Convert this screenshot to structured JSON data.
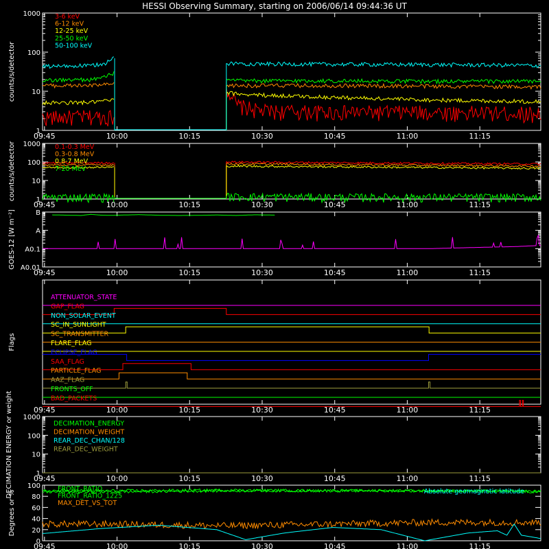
{
  "title": "HESSI Observing Summary, starting on 2006/06/14 09:44:36 UT",
  "x_ticks": [
    "09:45",
    "10:00",
    "10:15",
    "10:30",
    "10:45",
    "11:00",
    "11:15"
  ],
  "colors": {
    "red": "#ff0000",
    "orange": "#ff8c00",
    "yellow": "#ffff00",
    "green": "#00ff00",
    "cyan": "#00ffff",
    "magenta": "#ff00ff",
    "blue": "#0000ff",
    "olive": "#9c9c3c",
    "pink": "#ff6060",
    "white": "#ffffff"
  },
  "chart_data": [
    {
      "type": "line",
      "id": "rates-lo",
      "ylabel": "counts/s/detector",
      "y_scale": "log",
      "ylim": [
        1,
        1000
      ],
      "y_ticks": [
        "1",
        "10",
        "100",
        "1000"
      ],
      "x_unit": "minutes after 09:44:36 UT",
      "xlim": [
        0,
        103
      ],
      "gaps": [
        [
          14.9,
          38.0
        ]
      ],
      "legend_position": "top-left",
      "series": [
        {
          "name": "3-6 keV",
          "color": "red",
          "x": [
            0,
            14.8,
            38.1,
            40,
            45,
            60,
            80,
            100,
            103
          ],
          "y": [
            2.2,
            2.3,
            12,
            4.5,
            3.2,
            3.0,
            3.0,
            2.8,
            2.8
          ]
        },
        {
          "name": "6-12 keV",
          "color": "orange",
          "x": [
            0,
            10,
            14.8,
            38.1,
            45,
            60,
            80,
            100,
            103
          ],
          "y": [
            14,
            14,
            15,
            14,
            14,
            14,
            13.5,
            13,
            13
          ]
        },
        {
          "name": "12-25 keV",
          "color": "yellow",
          "x": [
            0,
            10,
            14.8,
            38.1,
            45,
            60,
            80,
            100,
            103
          ],
          "y": [
            5,
            5.2,
            6,
            9,
            8,
            7,
            6,
            5.5,
            5.5
          ]
        },
        {
          "name": "25-50 keV",
          "color": "green",
          "x": [
            0,
            10,
            13,
            14.8,
            38.1,
            45,
            60,
            80,
            100,
            103
          ],
          "y": [
            19,
            20,
            23,
            30,
            19,
            18.5,
            18.5,
            18,
            18,
            18
          ]
        },
        {
          "name": "50-100 keV",
          "color": "cyan",
          "x": [
            0,
            10,
            13,
            14.8,
            38.1,
            45,
            60,
            80,
            100,
            103
          ],
          "y": [
            43,
            45,
            52,
            70,
            52,
            50,
            49,
            48,
            46,
            45
          ]
        }
      ]
    },
    {
      "type": "line",
      "id": "rates-hi",
      "ylabel": "counts/s/detector",
      "y_scale": "log",
      "ylim": [
        1,
        1000
      ],
      "y_ticks": [
        "1",
        "10",
        "100",
        "1000"
      ],
      "x_unit": "minutes after 09:44:36 UT",
      "xlim": [
        0,
        103
      ],
      "gaps": [
        [
          14.9,
          38.0
        ]
      ],
      "legend_position": "top-left",
      "series": [
        {
          "name": "0.1-0.3 MeV",
          "color": "red",
          "x": [
            0,
            14.8,
            38.1,
            60,
            80,
            103
          ],
          "y": [
            88,
            90,
            100,
            92,
            85,
            78
          ]
        },
        {
          "name": "0.3-0.8 MeV",
          "color": "orange",
          "x": [
            0,
            14.8,
            38.1,
            60,
            80,
            103
          ],
          "y": [
            68,
            70,
            80,
            72,
            66,
            60
          ]
        },
        {
          "name": "0.8-7 MeV",
          "color": "yellow",
          "x": [
            0,
            14.8,
            38.1,
            60,
            80,
            103
          ],
          "y": [
            50,
            52,
            60,
            55,
            50,
            45
          ]
        },
        {
          "name": "7-20 MeV",
          "color": "green",
          "x": [
            0,
            14.8,
            38.1,
            60,
            80,
            103
          ],
          "y": [
            1.3,
            1.3,
            1.4,
            1.3,
            1.3,
            1.3
          ]
        }
      ]
    },
    {
      "type": "line",
      "id": "goes",
      "ylabel": "GOES-12 [W m⁻²]",
      "y_scale": "log",
      "ylim": [
        1e-09,
        1e-06
      ],
      "y_ticks": [
        "A0.01",
        "A0.1",
        "A",
        "B"
      ],
      "x_unit": "minutes after 09:44:36 UT",
      "xlim": [
        0,
        103
      ],
      "series": [
        {
          "color": "green",
          "x": [
            2,
            8,
            10,
            12,
            14,
            20,
            24,
            28,
            32,
            36,
            40,
            44,
            48
          ],
          "y": [
            7e-07,
            6.5e-07,
            7.5e-07,
            6.8e-07,
            6.6e-07,
            7.2e-07,
            6.7e-07,
            6.5e-07,
            6.6e-07,
            6.9e-07,
            6.5e-07,
            7.1e-07,
            6.8e-07
          ]
        },
        {
          "color": "magenta",
          "x": [
            0,
            20,
            40,
            60,
            80,
            98,
            103
          ],
          "y": [
            1e-08,
            1e-08,
            1e-08,
            1e-08,
            1e-08,
            1.3e-08,
            1.5e-08
          ]
        }
      ]
    },
    {
      "type": "line",
      "id": "flags",
      "ylabel": "Flags",
      "x_unit": "minutes after 09:44:36 UT",
      "xlim": [
        0,
        103
      ],
      "series": [
        {
          "name": "ATTENUATOR_STATE",
          "color": "magenta",
          "x": [
            0,
            103
          ],
          "y": [
            0,
            0
          ]
        },
        {
          "name": "GAP_FLAG",
          "color": "red",
          "x": [
            0,
            14.8,
            14.8,
            38.0,
            38.0,
            103
          ],
          "y": [
            0,
            0,
            1,
            1,
            0,
            0
          ]
        },
        {
          "name": "NON_SOLAR_EVENT",
          "color": "cyan",
          "x": [
            0,
            103
          ],
          "y": [
            0,
            0
          ]
        },
        {
          "name": "SC_IN_SUNLIGHT",
          "color": "yellow",
          "x": [
            0,
            17.2,
            17.2,
            79.9,
            79.9,
            103
          ],
          "y": [
            0,
            0,
            1,
            1,
            0,
            0
          ]
        },
        {
          "name": "SC_TRANSMITTER",
          "color": "orange",
          "x": [
            0,
            103
          ],
          "y": [
            0,
            0
          ]
        },
        {
          "name": "FLARE_FLAG",
          "color": "yellow",
          "x": [
            0,
            103
          ],
          "y": [
            0,
            0
          ]
        },
        {
          "name": "ECLIPSE_FLAG",
          "color": "blue",
          "x": [
            0,
            17.4,
            17.4,
            79.8,
            79.8,
            103
          ],
          "y": [
            1,
            1,
            0,
            0,
            1,
            1
          ]
        },
        {
          "name": "SAA_FLAG",
          "color": "red",
          "x": [
            0,
            16.6,
            16.6,
            30.7,
            30.7,
            103
          ],
          "y": [
            0,
            0,
            1,
            1,
            0,
            0
          ]
        },
        {
          "name": "PARTICLE_FLAG",
          "color": "orange",
          "x": [
            0,
            15.8,
            15.8,
            29.9,
            29.9,
            103
          ],
          "y": [
            0,
            0,
            1,
            1,
            0,
            0
          ]
        },
        {
          "name": "AAZ_FLAG",
          "color": "olive",
          "x": [
            0,
            17.2,
            17.2,
            17.5,
            17.5,
            79.8,
            79.8,
            80.1,
            80.1,
            103
          ],
          "y": [
            0,
            0,
            1,
            1,
            0,
            0,
            1,
            1,
            0,
            0
          ]
        },
        {
          "name": "FRONTS_OFF",
          "color": "green",
          "x": [
            0,
            103
          ],
          "y": [
            0,
            0
          ]
        },
        {
          "name": "BAD_PACKETS",
          "color": "red",
          "x": [
            0,
            98.6,
            98.6,
            98.8,
            98.8,
            99.2,
            99.2,
            99.4,
            99.4,
            103
          ],
          "y": [
            0,
            0,
            1,
            1,
            0,
            0,
            1,
            1,
            0,
            0
          ]
        }
      ]
    },
    {
      "type": "line",
      "id": "decimation",
      "ylabel": "DECIMATION ENERGY or weight",
      "y_scale": "log",
      "ylim": [
        1,
        1000
      ],
      "y_ticks": [
        "1",
        "10",
        "100",
        "1000"
      ],
      "x_unit": "minutes after 09:44:36 UT",
      "xlim": [
        0,
        103
      ],
      "legend_position": "top-left",
      "series": [
        {
          "name": "DECIMATION_ENERGY",
          "color": "green",
          "x": [
            0,
            103
          ],
          "y": [
            1,
            1
          ]
        },
        {
          "name": "DECIMATION_WEIGHT",
          "color": "orange",
          "x": [
            0,
            103
          ],
          "y": [
            1,
            1
          ]
        },
        {
          "name": "REAR_DEC_CHAN/128",
          "color": "cyan",
          "x": [
            0,
            103
          ],
          "y": [
            1,
            1
          ]
        },
        {
          "name": "REAR_DEC_WEIGHT",
          "color": "olive",
          "x": [
            0,
            103
          ],
          "y": [
            1,
            1
          ]
        }
      ]
    },
    {
      "type": "line",
      "id": "ratios",
      "ylabel": "Degrees or %",
      "ylim": [
        0,
        100
      ],
      "y_ticks": [
        "0",
        "20",
        "40",
        "60",
        "80",
        "100"
      ],
      "x_unit": "minutes after 09:44:36 UT",
      "xlim": [
        0,
        103
      ],
      "legend_position": "top-left",
      "series": [
        {
          "name": "FRONT_RATIO",
          "color": "green",
          "x": [
            0,
            14.8,
            38.1,
            60,
            80,
            103
          ],
          "y": [
            88,
            88,
            90,
            90,
            90,
            88
          ]
        },
        {
          "name": "FRONT_RATIO_1225",
          "color": "green",
          "x": [
            0,
            14.8,
            38.1,
            60,
            80,
            103
          ],
          "y": [
            90,
            90,
            91,
            90,
            90,
            89
          ]
        },
        {
          "name": "MAX_DET_VS_TOT",
          "color": "orange",
          "x": [
            0,
            14.8,
            38.1,
            60,
            80,
            103
          ],
          "y": [
            30,
            30,
            27,
            30,
            33,
            33
          ]
        },
        {
          "name": "Absolute geomagnetic latitude",
          "color": "cyan",
          "x": [
            0,
            12,
            24,
            36,
            42,
            50,
            60,
            70,
            79,
            88,
            94,
            96,
            97.5,
            99,
            103
          ],
          "y": [
            13,
            22,
            28,
            20,
            2,
            14,
            24,
            20,
            0,
            14,
            18,
            10,
            30,
            10,
            4
          ]
        }
      ]
    }
  ]
}
